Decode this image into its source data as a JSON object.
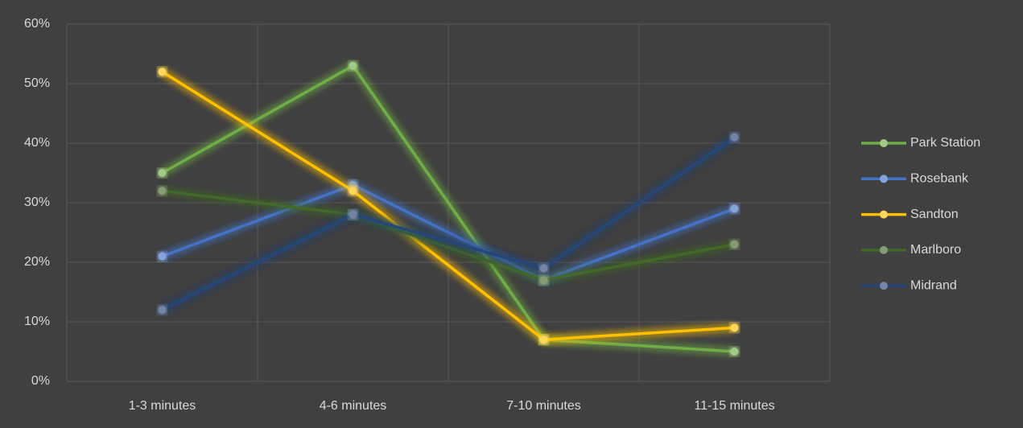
{
  "chart_data": {
    "type": "line",
    "categories": [
      "1-3 minutes",
      "4-6 minutes",
      "7-10 minutes",
      "11-15 minutes"
    ],
    "series": [
      {
        "name": "Park Station",
        "color": "#70ad47",
        "values": [
          35,
          53,
          7,
          5
        ]
      },
      {
        "name": "Rosebank",
        "color": "#4472c4",
        "values": [
          21,
          33,
          17,
          29
        ]
      },
      {
        "name": "Sandton",
        "color": "#ffc000",
        "values": [
          52,
          32,
          7,
          9
        ]
      },
      {
        "name": "Marlboro",
        "color": "#43682b",
        "values": [
          32,
          28,
          17,
          23
        ]
      },
      {
        "name": "Midrand",
        "color": "#264478",
        "values": [
          12,
          28,
          19,
          41
        ]
      }
    ],
    "ylim": [
      0,
      60
    ],
    "yticks": [
      {
        "value": 0,
        "label": "0%"
      },
      {
        "value": 10,
        "label": "10%"
      },
      {
        "value": 20,
        "label": "20%"
      },
      {
        "value": 30,
        "label": "30%"
      },
      {
        "value": 40,
        "label": "40%"
      },
      {
        "value": 50,
        "label": "50%"
      },
      {
        "value": 60,
        "label": "60%"
      }
    ],
    "grid": true,
    "legend": "right"
  }
}
